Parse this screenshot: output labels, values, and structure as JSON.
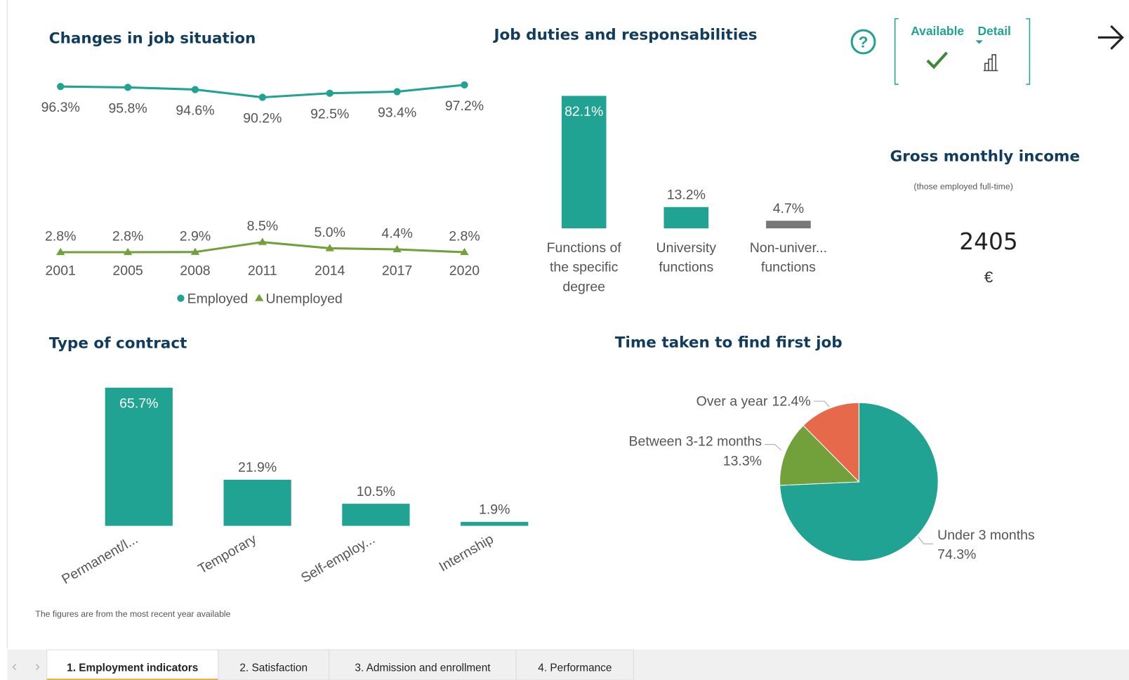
{
  "chart_data": [
    {
      "type": "line",
      "title": "Changes in job situation",
      "categories": [
        "2001",
        "2005",
        "2008",
        "2011",
        "2014",
        "2017",
        "2020"
      ],
      "series": [
        {
          "name": "Employed",
          "color": "#21a393",
          "marker": "circle",
          "values": [
            96.3,
            95.8,
            94.6,
            90.2,
            92.5,
            93.4,
            97.2
          ],
          "value_labels": [
            "96.3%",
            "95.8%",
            "94.6%",
            "90.2%",
            "92.5%",
            "93.4%",
            "97.2%"
          ]
        },
        {
          "name": "Unemployed",
          "color": "#72a03a",
          "marker": "triangle",
          "values": [
            2.8,
            2.8,
            2.9,
            8.5,
            5.0,
            4.4,
            2.8
          ],
          "value_labels": [
            "2.8%",
            "2.8%",
            "2.9%",
            "8.5%",
            "5.0%",
            "4.4%",
            "2.8%"
          ]
        }
      ],
      "ylim": [
        0,
        100
      ],
      "legend": "bottom"
    },
    {
      "type": "bar",
      "title": "Job duties and responsabilities",
      "categories": [
        "Functions of the specific degree",
        "University functions",
        "Non-univer... functions"
      ],
      "values": [
        82.1,
        13.2,
        4.7
      ],
      "value_labels": [
        "82.1%",
        "13.2%",
        "4.7%"
      ],
      "colors": [
        "#21a393",
        "#21a393",
        "#777777"
      ],
      "ylim": [
        0,
        100
      ]
    },
    {
      "type": "bar",
      "title": "Type of contract",
      "categories": [
        "Permanent/l...",
        "Temporary",
        "Self-employ...",
        "Internship"
      ],
      "values": [
        65.7,
        21.9,
        10.5,
        1.9
      ],
      "value_labels": [
        "65.7%",
        "21.9%",
        "10.5%",
        "1.9%"
      ],
      "colors": [
        "#21a393",
        "#21a393",
        "#21a393",
        "#21a393"
      ],
      "ylim": [
        0,
        100
      ]
    },
    {
      "type": "pie",
      "title": "Time taken to find first job",
      "categories": [
        "Under 3 months",
        "Between 3-12 months",
        "Over a year"
      ],
      "values": [
        74.3,
        13.3,
        12.4
      ],
      "value_labels": [
        "74.3%",
        "13.3%",
        "12.4%"
      ],
      "colors": [
        "#21a393",
        "#72a03a",
        "#e5694a"
      ]
    }
  ],
  "help": "?",
  "toggle": [
    "Available",
    "Detail"
  ],
  "income": {
    "title": "Gross monthly income",
    "subtitle": "(those employed full-time)",
    "value": "2405",
    "unit": "€"
  },
  "footnote": "The figures are from the most recent year available",
  "tabs": [
    "1. Employment indicators",
    "2. Satisfaction",
    "3. Admission and enrollment",
    "4. Performance"
  ]
}
